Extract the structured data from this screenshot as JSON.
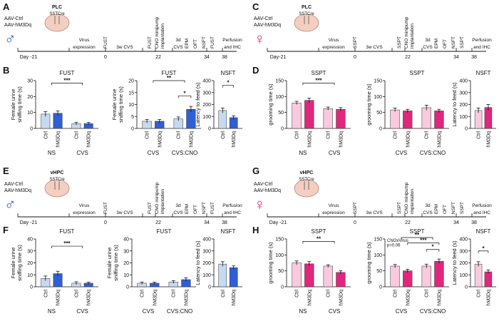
{
  "panel_labels": [
    "A",
    "B",
    "C",
    "D",
    "E",
    "F",
    "G",
    "H"
  ],
  "timelines": [
    {
      "virus": [
        "AAV-Ctrl",
        "AAV-hM3Dq"
      ],
      "region": "PLC",
      "mouse": "SSTCre",
      "sex": "♂",
      "color": "#2f5fd6",
      "events": [
        "Virus",
        "expression",
        "FUST",
        "3w CVS",
        "FUST",
        "CNO minipump",
        "implantation",
        "3d",
        "CVS",
        "EPM",
        "OFT",
        "NSFT",
        "FUST",
        "Perfusion",
        "and IHC"
      ],
      "days": [
        "Day -21",
        "0",
        "22",
        "34",
        "38"
      ]
    },
    {
      "virus": [
        "AAV-Ctrl",
        "AAV-hM3Dq"
      ],
      "region": "PLC",
      "mouse": "SSTCre",
      "sex": "♀",
      "color": "#e2267e",
      "events": [
        "Virus",
        "expression",
        "SSPT",
        "3w CVS",
        "SSPT",
        "CNO minipump",
        "implantation",
        "3d",
        "CVS",
        "EPM",
        "OFT",
        "NSFT",
        "SSPT",
        "Perfusion",
        "and IHC"
      ],
      "days": [
        "Day-21",
        "0",
        "22",
        "34",
        "38"
      ]
    },
    {
      "virus": [
        "AAV-Ctrl",
        "AAV-hM3Dq"
      ],
      "region": "vHPC",
      "mouse": "SSTCre",
      "sex": "♂",
      "color": "#2f5fd6",
      "events": [
        "Virus",
        "expression",
        "FUST",
        "3w CVS",
        "FUST",
        "CNO minipump",
        "implantation",
        "3d",
        "CVS",
        "EPM",
        "OFT",
        "NSFT",
        "FUST",
        "Perfusion",
        "and IHC"
      ],
      "days": [
        "Day -21",
        "0",
        "22",
        "34",
        "38"
      ]
    },
    {
      "virus": [
        "AAV-Ctrl",
        "AAV-hM3Dq"
      ],
      "region": "vHPC",
      "mouse": "SSTCre",
      "sex": "♀",
      "color": "#e2267e",
      "events": [
        "Virus",
        "expression",
        "SSPT",
        "3w CVS",
        "SSPT",
        "CNO minipump",
        "implantation",
        "3d",
        "CVS",
        "EPM",
        "OFT",
        "NSFT",
        "SSPT",
        "Perfusion",
        "and IHC"
      ],
      "days": [
        "Day -21",
        "0",
        "22",
        "34",
        "38"
      ]
    }
  ],
  "chart_data": [
    {
      "type": "bar",
      "title": "FUST",
      "ylabel": [
        "Female urine",
        "sniffing time (s)"
      ],
      "ylim": [
        0,
        30
      ],
      "yticks": [
        0,
        10,
        20,
        30
      ],
      "categories": [
        "Ctrl",
        "hM3Dq",
        "Ctrl",
        "hM3Dq"
      ],
      "groups": [
        "NS",
        "CVS"
      ],
      "values": [
        9,
        9.5,
        3,
        3
      ],
      "errors": [
        1.5,
        1.5,
        0.8,
        0.8
      ],
      "colors": [
        "#c5d9f0",
        "#2f5fd6",
        "#c5d9f0",
        "#2f5fd6"
      ],
      "annotations": [
        "***"
      ]
    },
    {
      "type": "bar",
      "title": "FUST",
      "ylabel": [
        "Female urine",
        "sniffing time (s)"
      ],
      "ylim": [
        0,
        20
      ],
      "yticks": [
        0,
        5,
        10,
        15,
        20
      ],
      "categories": [
        "Ctrl",
        "hM3Dq",
        "Ctrl",
        "hM3Dq"
      ],
      "groups": [
        "CVS",
        "CVS:CNO"
      ],
      "values": [
        3,
        3,
        4,
        8
      ],
      "errors": [
        0.7,
        0.7,
        0.8,
        1.2
      ],
      "colors": [
        "#c5d9f0",
        "#2f5fd6",
        "#c5d9f0",
        "#2f5fd6"
      ],
      "annotations": [
        "**",
        "*"
      ]
    },
    {
      "type": "bar",
      "title": "NSFT",
      "ylabel": [
        "Latency to feed (s)"
      ],
      "ylim": [
        0,
        400
      ],
      "yticks": [
        0,
        100,
        200,
        300,
        400
      ],
      "categories": [
        "Ctrl",
        "hM3Dq"
      ],
      "values": [
        150,
        90
      ],
      "errors": [
        20,
        15
      ],
      "colors": [
        "#c5d9f0",
        "#2f5fd6"
      ],
      "annotations": [
        "*"
      ]
    },
    {
      "type": "bar",
      "title": "SSPT",
      "ylabel": [
        "grooming time (s)"
      ],
      "ylim": [
        0,
        150
      ],
      "yticks": [
        0,
        50,
        100,
        150
      ],
      "categories": [
        "Ctrl",
        "hM3Dq",
        "Ctrl",
        "hM3Dq"
      ],
      "groups": [
        "NS",
        "CVS"
      ],
      "values": [
        80,
        88,
        62,
        60
      ],
      "errors": [
        5,
        7,
        5,
        5
      ],
      "colors": [
        "#f9c9dd",
        "#e2267e",
        "#f9c9dd",
        "#e2267e"
      ],
      "annotations": [
        "***"
      ]
    },
    {
      "type": "bar",
      "title": "SSPT",
      "ylabel": [
        "grooming time (s)"
      ],
      "ylim": [
        0,
        150
      ],
      "yticks": [
        0,
        50,
        100,
        150
      ],
      "categories": [
        "Ctrl",
        "hM3Dq",
        "Ctrl",
        "hM3Dq"
      ],
      "groups": [
        "CVS",
        "CVS:CNO"
      ],
      "values": [
        58,
        55,
        65,
        55
      ],
      "errors": [
        6,
        5,
        8,
        5
      ],
      "colors": [
        "#f9c9dd",
        "#e2267e",
        "#f9c9dd",
        "#e2267e"
      ],
      "annotations": []
    },
    {
      "type": "bar",
      "title": "NSFT",
      "ylabel": [
        "Latency to feed (s)"
      ],
      "ylim": [
        0,
        400
      ],
      "yticks": [
        0,
        100,
        200,
        300,
        400
      ],
      "categories": [
        "Ctrl",
        "hM3Dq"
      ],
      "values": [
        150,
        175
      ],
      "errors": [
        20,
        25
      ],
      "colors": [
        "#f9c9dd",
        "#e2267e"
      ],
      "annotations": []
    },
    {
      "type": "bar",
      "title": "FUST",
      "ylabel": [
        "Female urine",
        "sniffing time (s)"
      ],
      "ylim": [
        0,
        40
      ],
      "yticks": [
        0,
        10,
        20,
        30,
        40
      ],
      "categories": [
        "Ctrl",
        "hM3Dq",
        "Ctrl",
        "hM3Dq"
      ],
      "groups": [
        "NS",
        "CVS"
      ],
      "values": [
        7,
        11,
        3,
        3
      ],
      "errors": [
        2,
        2,
        1.2,
        0.8
      ],
      "colors": [
        "#c5d9f0",
        "#2f5fd6",
        "#c5d9f0",
        "#2f5fd6"
      ],
      "annotations": [
        "***"
      ]
    },
    {
      "type": "bar",
      "title": "FUST",
      "ylabel": [
        "Female urine",
        "sniffing time (s)"
      ],
      "ylim": [
        0,
        40
      ],
      "yticks": [
        0,
        10,
        20,
        30,
        40
      ],
      "categories": [
        "Ctrl",
        "hM3Dq",
        "Ctrl",
        "hM3Dq"
      ],
      "groups": [
        "CVS",
        "CVS:CNO"
      ],
      "values": [
        3,
        3,
        4,
        6
      ],
      "errors": [
        1,
        0.8,
        1.2,
        1.5
      ],
      "colors": [
        "#c5d9f0",
        "#2f5fd6",
        "#c5d9f0",
        "#2f5fd6"
      ],
      "annotations": []
    },
    {
      "type": "bar",
      "title": "NSFT",
      "ylabel": [
        "Latency to feed (s)"
      ],
      "ylim": [
        0,
        400
      ],
      "yticks": [
        0,
        100,
        200,
        300,
        400
      ],
      "categories": [
        "Ctrl",
        "hM3Dq"
      ],
      "values": [
        190,
        160
      ],
      "errors": [
        20,
        15
      ],
      "colors": [
        "#c5d9f0",
        "#2f5fd6"
      ],
      "annotations": []
    },
    {
      "type": "bar",
      "title": "SSPT",
      "ylabel": [
        "grooming time (s)"
      ],
      "ylim": [
        0,
        150
      ],
      "yticks": [
        0,
        50,
        100,
        150
      ],
      "categories": [
        "Ctrl",
        "hM3Dq",
        "Ctrl",
        "hM3Dq"
      ],
      "groups": [
        "NS",
        "CVS"
      ],
      "values": [
        75,
        72,
        65,
        45
      ],
      "errors": [
        6,
        7,
        4,
        5
      ],
      "colors": [
        "#f9c9dd",
        "#e2267e",
        "#f9c9dd",
        "#e2267e"
      ],
      "annotations": [
        "**"
      ]
    },
    {
      "type": "bar",
      "title": "SSPT",
      "ylabel": [
        "grooming time (s)"
      ],
      "ylim": [
        0,
        150
      ],
      "yticks": [
        0,
        50,
        100,
        150
      ],
      "categories": [
        "Ctrl",
        "hM3Dq",
        "Ctrl",
        "hM3Dq"
      ],
      "groups": [
        "CVS",
        "CVS:CNO"
      ],
      "values": [
        65,
        50,
        65,
        80
      ],
      "errors": [
        5,
        5,
        6,
        7
      ],
      "colors": [
        "#f9c9dd",
        "#e2267e",
        "#f9c9dd",
        "#e2267e"
      ],
      "annotations": [
        "CNOxVirus",
        "p=0.06",
        "**",
        "***",
        "*"
      ]
    },
    {
      "type": "bar",
      "title": "NSFT",
      "ylabel": [
        "Latency to feed (s)"
      ],
      "ylim": [
        0,
        400
      ],
      "yticks": [
        0,
        100,
        200,
        300,
        400
      ],
      "categories": [
        "Ctrl",
        "hM3Dq"
      ],
      "values": [
        190,
        125
      ],
      "errors": [
        20,
        15
      ],
      "colors": [
        "#f9c9dd",
        "#e2267e"
      ],
      "annotations": [
        "*"
      ]
    }
  ]
}
